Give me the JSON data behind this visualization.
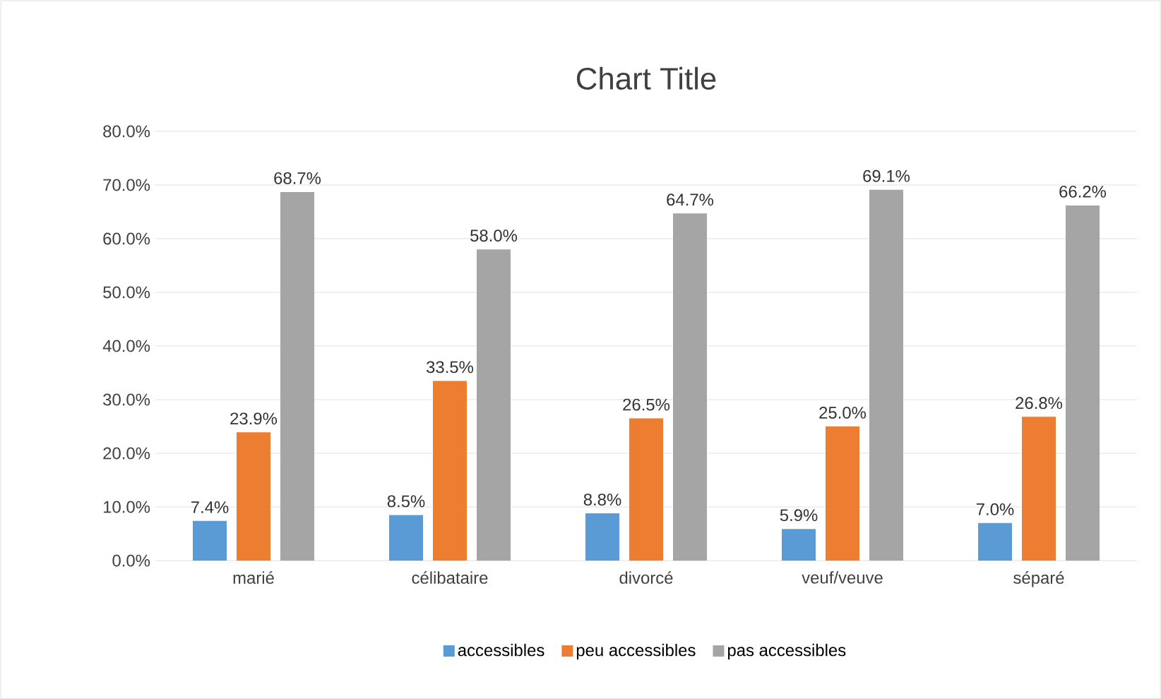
{
  "chart_data": {
    "type": "bar",
    "title": "Chart Title",
    "categories": [
      "marié",
      "célibataire",
      "divorcé",
      "veuf/veuve",
      "séparé"
    ],
    "series": [
      {
        "name": "accessibles",
        "color": "#5b9bd5",
        "values": [
          7.4,
          8.5,
          8.8,
          5.9,
          7.0
        ],
        "value_labels": [
          "7.4%",
          "8.5%",
          "8.8%",
          "5.9%",
          "7.0%"
        ]
      },
      {
        "name": "peu accessibles",
        "color": "#ed7d31",
        "values": [
          23.9,
          33.5,
          26.5,
          25.0,
          26.8
        ],
        "value_labels": [
          "23.9%",
          "33.5%",
          "26.5%",
          "25.0%",
          "26.8%"
        ]
      },
      {
        "name": "pas accessibles",
        "color": "#a5a5a5",
        "values": [
          68.7,
          58.0,
          64.7,
          69.1,
          66.2
        ],
        "value_labels": [
          "68.7%",
          "58.0%",
          "64.7%",
          "69.1%",
          "66.2%"
        ]
      }
    ],
    "ylim": [
      0,
      80
    ],
    "yticks": [
      {
        "value": 0,
        "label": "0.0%"
      },
      {
        "value": 10,
        "label": "10.0%"
      },
      {
        "value": 20,
        "label": "20.0%"
      },
      {
        "value": 30,
        "label": "30.0%"
      },
      {
        "value": 40,
        "label": "40.0%"
      },
      {
        "value": 50,
        "label": "50.0%"
      },
      {
        "value": 60,
        "label": "60.0%"
      },
      {
        "value": 70,
        "label": "70.0%"
      },
      {
        "value": 80,
        "label": "80.0%"
      }
    ],
    "grid": "y",
    "legend": "bottom"
  }
}
